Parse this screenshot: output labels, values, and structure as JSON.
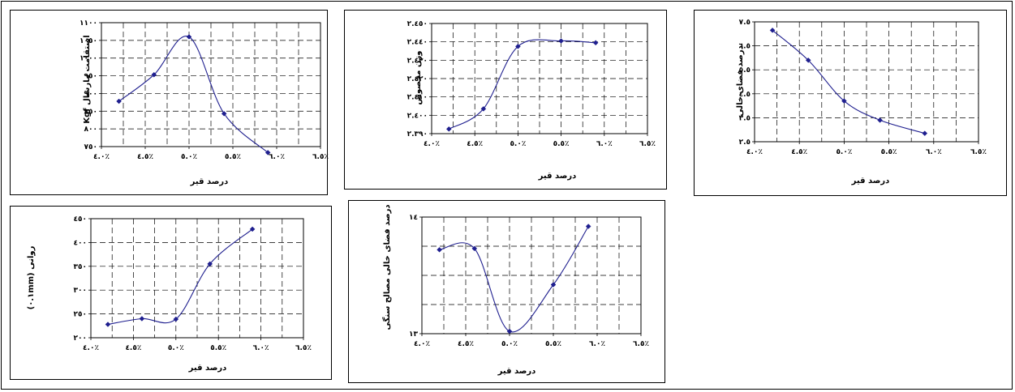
{
  "chart_data": [
    {
      "id": "c1",
      "type": "line",
      "xlabel": "درصد قیر",
      "ylabel": "استقامت مارشال Kgf",
      "x_tick_labels": [
        "٤.٠٪",
        "٤.٥٪",
        "٥.٠٪",
        "٥.٥٪",
        "٦.٠٪",
        "٦.٥٪"
      ],
      "y_tick_labels": [
        "٧٥٠",
        "٨٠٠",
        "٨٥٠",
        "٩٠٠",
        "٩٥٠",
        "١٠٠٠",
        "١٠٥٠",
        "١١٠٠"
      ],
      "xlim": [
        4.0,
        6.5
      ],
      "ylim": [
        750,
        1100
      ],
      "grid": true,
      "series": [
        {
          "x": [
            4.2,
            4.6,
            5.0,
            5.4,
            5.9
          ],
          "y": [
            878,
            953,
            1060,
            843,
            733
          ]
        }
      ]
    },
    {
      "id": "c2",
      "type": "line",
      "xlabel": "درصد قیر",
      "ylabel": "وزن مخصوص",
      "x_tick_labels": [
        "٤.٠٪",
        "٤.٥٪",
        "٥.٠٪",
        "٥.٥٪",
        "٦.٠٪",
        "٦.٥٪"
      ],
      "y_tick_labels": [
        "٢.٣٩٠",
        "٢.٤٠٠",
        "٢.٤١٠",
        "٢.٤٢٠",
        "٢.٤٣٠",
        "٢.٤٤٠",
        "٢.٤٥٠"
      ],
      "xlim": [
        4.0,
        6.5
      ],
      "ylim": [
        2.39,
        2.45
      ],
      "grid": true,
      "series": [
        {
          "x": [
            4.2,
            4.6,
            5.0,
            5.5,
            5.9
          ],
          "y": [
            2.3925,
            2.4035,
            2.4375,
            2.4405,
            2.4395
          ]
        }
      ]
    },
    {
      "id": "c3",
      "type": "line",
      "xlabel": "درصد قیر",
      "ylabel": "درصد فضای خالی",
      "x_tick_labels": [
        "٤.٠٪",
        "٤.٥٪",
        "٥.٠٪",
        "٥.٥٪",
        "٦.٠٪",
        "٦.٥٪"
      ],
      "y_tick_labels": [
        "٢.٥",
        "٣.٥",
        "٤.٥",
        "٥.٥",
        "٦.٥",
        "٧.٥"
      ],
      "xlim": [
        4.0,
        6.5
      ],
      "ylim": [
        2.5,
        7.5
      ],
      "grid": true,
      "series": [
        {
          "x": [
            4.2,
            4.6,
            5.0,
            5.4,
            5.9
          ],
          "y": [
            7.15,
            5.9,
            4.2,
            3.4,
            2.85
          ]
        }
      ]
    },
    {
      "id": "c4",
      "type": "line",
      "xlabel": "درصد قیر",
      "ylabel": "روانی (٠.١mm)",
      "x_tick_labels": [
        "٤.٠٪",
        "٤.٥٪",
        "٥.٠٪",
        "٥.٥٪",
        "٦.٠٪",
        "٦.٥٪"
      ],
      "y_tick_labels": [
        "٢٠٠",
        "٢٥٠",
        "٣٠٠",
        "٣٥٠",
        "٤٠٠",
        "٤٥٠"
      ],
      "xlim": [
        4.0,
        6.5
      ],
      "ylim": [
        200,
        450
      ],
      "grid": true,
      "series": [
        {
          "x": [
            4.2,
            4.6,
            5.0,
            5.4,
            5.9
          ],
          "y": [
            228,
            240,
            239,
            355,
            428
          ]
        }
      ]
    },
    {
      "id": "c5",
      "type": "line",
      "xlabel": "درصد قیر",
      "ylabel": "درصد فضای خالی مصالح سنگی",
      "x_tick_labels": [
        "٤.٠٪",
        "٤.٥٪",
        "٥.٠٪",
        "٥.٥٪",
        "٦.٠٪",
        "٦.٥٪"
      ],
      "y_tick_labels": [
        "١٣",
        "١٤"
      ],
      "xlim": [
        4.0,
        6.5
      ],
      "ylim": [
        13,
        14
      ],
      "grid": true,
      "series": [
        {
          "x": [
            4.2,
            4.6,
            5.0,
            5.5,
            5.9
          ],
          "y": [
            13.72,
            13.73,
            13.02,
            13.42,
            13.92
          ]
        }
      ]
    }
  ]
}
